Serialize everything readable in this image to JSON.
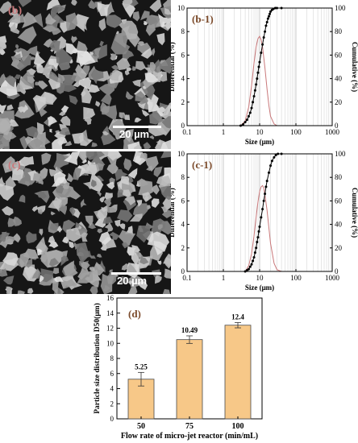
{
  "images": [
    {
      "panel_label": "(b)",
      "scale_label": "20 µm"
    },
    {
      "panel_label": "(c)",
      "scale_label": "20 µm"
    }
  ],
  "colors": {
    "cumulative": "#000000",
    "differential": "#c9787a",
    "bar_fill": "#f7c888",
    "bar_edge": "#4a4a4a",
    "label_brown": "#7b4a2a"
  },
  "chart_data": [
    {
      "type": "line",
      "panel": "(b-1)",
      "xlabel": "Size (μm)",
      "ylabel": "Differential (%)",
      "y2label": "Cumulative (%)",
      "xscale": "log",
      "xlim": [
        0.1,
        1000
      ],
      "xticks": [
        "0.1",
        "1",
        "10",
        "100",
        "1000"
      ],
      "ylim": [
        0,
        10
      ],
      "yticks": [
        0,
        2,
        4,
        6,
        8,
        10
      ],
      "y2lim": [
        0,
        100
      ],
      "y2ticks": [
        0,
        20,
        40,
        60,
        80,
        100
      ],
      "grid": true,
      "series": [
        {
          "kind": "differential",
          "axis": "left",
          "x": [
            3,
            4,
            5,
            6,
            7,
            8,
            9,
            10,
            11,
            12,
            14,
            16,
            18,
            20,
            25,
            30
          ],
          "y": [
            0,
            0.4,
            1.6,
            3.4,
            5.3,
            6.7,
            7.4,
            7.6,
            7.3,
            6.7,
            4.9,
            3.1,
            1.7,
            0.8,
            0.15,
            0
          ]
        },
        {
          "kind": "cumulative",
          "axis": "right",
          "x": [
            0.1,
            1,
            3,
            3.5,
            4,
            4.5,
            5,
            5.5,
            6,
            6.5,
            7,
            7.5,
            8,
            8.5,
            9,
            9.5,
            10,
            11,
            12,
            13,
            14,
            15,
            16,
            17,
            18,
            19,
            20,
            22,
            24,
            27,
            30,
            40,
            100,
            1000
          ],
          "y": [
            0,
            0,
            0,
            1,
            3,
            5,
            8,
            11,
            15,
            20,
            25,
            30,
            35,
            40,
            45,
            50,
            54,
            62,
            69,
            75,
            80,
            85,
            88,
            91,
            93,
            95,
            97,
            98.5,
            99.3,
            100,
            100,
            100,
            100,
            100
          ]
        }
      ]
    },
    {
      "type": "line",
      "panel": "(c-1)",
      "xlabel": "Size (μm)",
      "ylabel": "Differential (%)",
      "y2label": "Cumulative (%)",
      "xscale": "log",
      "xlim": [
        0.1,
        1000
      ],
      "xticks": [
        "0.1",
        "1",
        "10",
        "100",
        "1000"
      ],
      "ylim": [
        0,
        10
      ],
      "yticks": [
        0,
        2,
        4,
        6,
        8,
        10
      ],
      "y2lim": [
        0,
        100
      ],
      "y2ticks": [
        0,
        20,
        40,
        60,
        80,
        100
      ],
      "grid": true,
      "series": [
        {
          "kind": "differential",
          "axis": "left",
          "x": [
            4,
            5,
            6,
            7,
            8,
            9,
            10,
            11,
            12,
            13,
            14,
            16,
            18,
            20,
            25,
            30,
            40
          ],
          "y": [
            0,
            0.5,
            1.5,
            3,
            4.6,
            5.9,
            6.8,
            7.2,
            7.3,
            7.1,
            6.5,
            5.2,
            3.7,
            2.4,
            0.7,
            0.15,
            0
          ]
        },
        {
          "kind": "cumulative",
          "axis": "right",
          "x": [
            0.1,
            1,
            4,
            4.5,
            5,
            5.5,
            6,
            6.5,
            7,
            7.5,
            8,
            8.5,
            9,
            9.5,
            10,
            11,
            12,
            13,
            14,
            15,
            16,
            18,
            20,
            22,
            25,
            28,
            32,
            40,
            100,
            1000
          ],
          "y": [
            0,
            0,
            0,
            1,
            2,
            4,
            6,
            9,
            12,
            16,
            20,
            25,
            29,
            34,
            38,
            46,
            53,
            60,
            66,
            72,
            77,
            84,
            90,
            94,
            97,
            99,
            100,
            100,
            100,
            100
          ]
        }
      ]
    },
    {
      "type": "bar",
      "panel": "(d)",
      "categories": [
        "50",
        "75",
        "100"
      ],
      "values": [
        5.25,
        10.49,
        12.4
      ],
      "data_labels": [
        "5.25",
        "10.49",
        "12.4"
      ],
      "error": [
        0.9,
        0.5,
        0.35
      ],
      "xlabel": "Flow rate of micro-jet reactor (min/mL)",
      "ylabel": "Particle size distribution D50(μm)",
      "ylim": [
        0,
        16
      ],
      "yticks": [
        0,
        2,
        4,
        6,
        8,
        10,
        12,
        14,
        16
      ]
    }
  ]
}
